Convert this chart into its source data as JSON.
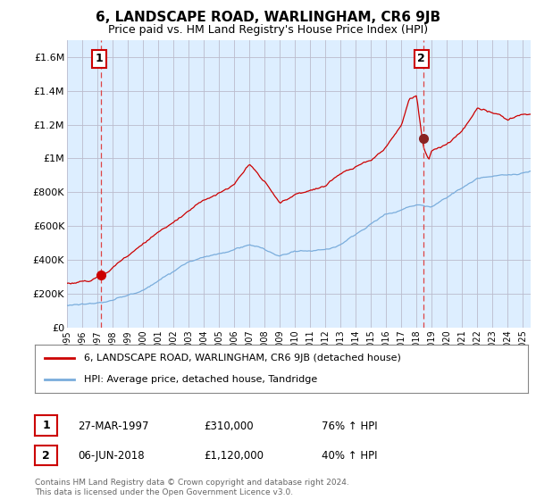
{
  "title": "6, LANDSCAPE ROAD, WARLINGHAM, CR6 9JB",
  "subtitle": "Price paid vs. HM Land Registry's House Price Index (HPI)",
  "ylabel_ticks": [
    "£0",
    "£200K",
    "£400K",
    "£600K",
    "£800K",
    "£1M",
    "£1.2M",
    "£1.4M",
    "£1.6M"
  ],
  "ytick_values": [
    0,
    200000,
    400000,
    600000,
    800000,
    1000000,
    1200000,
    1400000,
    1600000
  ],
  "ylim": [
    0,
    1700000
  ],
  "xlim_start": 1995.0,
  "xlim_end": 2025.5,
  "sale1_x": 1997.23,
  "sale1_y": 310000,
  "sale2_x": 2018.44,
  "sale2_y": 1120000,
  "sale1_label": "1",
  "sale2_label": "2",
  "legend_line1": "6, LANDSCAPE ROAD, WARLINGHAM, CR6 9JB (detached house)",
  "legend_line2": "HPI: Average price, detached house, Tandridge",
  "ann1_date": "27-MAR-1997",
  "ann1_price": "£310,000",
  "ann1_hpi": "76% ↑ HPI",
  "ann2_date": "06-JUN-2018",
  "ann2_price": "£1,120,000",
  "ann2_hpi": "40% ↑ HPI",
  "footer": "Contains HM Land Registry data © Crown copyright and database right 2024.\nThis data is licensed under the Open Government Licence v3.0.",
  "line_color_red": "#cc0000",
  "line_color_blue": "#7aaddc",
  "grid_color": "#bbbbcc",
  "bg_plot_color": "#ddeeff",
  "background_color": "#ffffff",
  "dashed_line_color": "#dd4444"
}
